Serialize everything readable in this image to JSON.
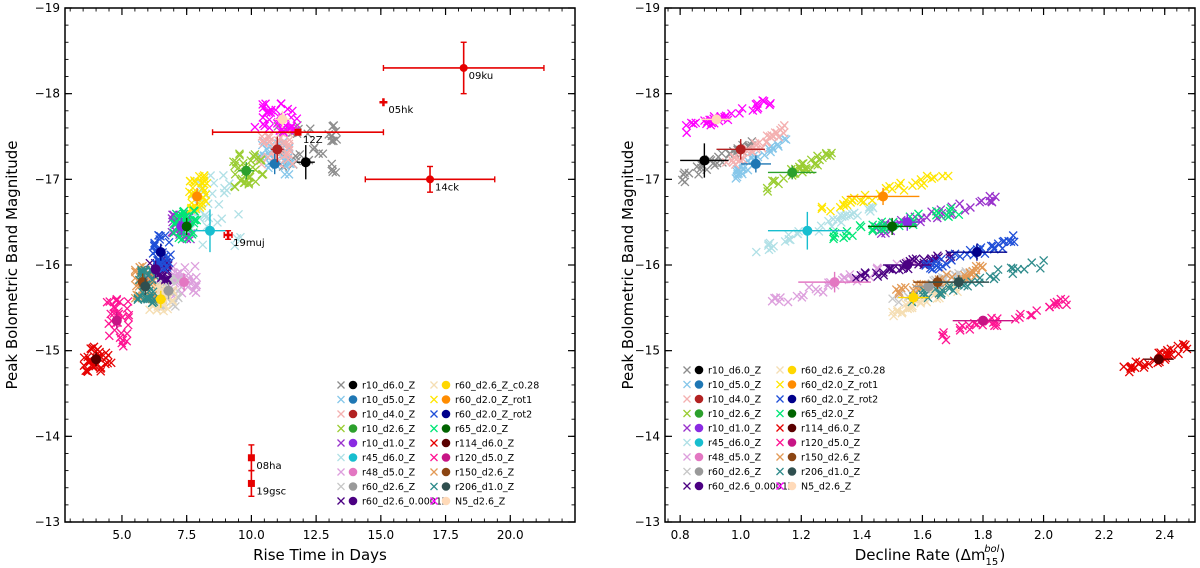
{
  "chart_data": [
    {
      "type": "scatter",
      "panel": "left",
      "xlabel": "Rise Time in Days",
      "ylabel": "Peak Bolometric Band Magnitude",
      "xlim": [
        2.8,
        22.5
      ],
      "ylim": [
        -19,
        -13
      ],
      "y_inverted": true,
      "xticks": [
        5.0,
        7.5,
        10.0,
        12.5,
        15.0,
        17.5,
        20.0
      ],
      "xtick_labels": [
        "5.0",
        "7.5",
        "10.0",
        "12.5",
        "15.0",
        "17.5",
        "20.0"
      ],
      "yticks": [
        -19,
        -18,
        -17,
        -16,
        -15,
        -14,
        -13
      ],
      "ytick_labels": [
        "−19",
        "−18",
        "−17",
        "−16",
        "−15",
        "−14",
        "−13"
      ],
      "legend_position": "bottom-right",
      "legend_columns": [
        [
          "r10_d6.0_Z",
          "r10_d5.0_Z",
          "r10_d4.0_Z",
          "r10_d2.6_Z",
          "r10_d1.0_Z",
          "r45_d6.0_Z",
          "r48_d5.0_Z",
          "r60_d2.6_Z",
          "r60_d2.6_0.0001Z"
        ],
        [
          "r60_d2.6_Z_c0.28",
          "r60_d2.0_Z_rot1",
          "r60_d2.0_Z_rot2",
          "r65_d2.0_Z",
          "r114_d6.0_Z",
          "r120_d5.0_Z",
          "r150_d2.6_Z",
          "r206_d1.0_Z",
          "N5_d2.6_Z"
        ]
      ],
      "series": [
        {
          "name": "r10_d6.0_Z",
          "color": "#000000",
          "cross_color": "#8c8c8c",
          "x": 12.1,
          "y": -17.2,
          "spread_x": [
            11.0,
            13.3
          ],
          "spread_y": [
            -17.65,
            -17.05
          ],
          "xerr": 0.35,
          "yerr": 0.2
        },
        {
          "name": "r10_d5.0_Z",
          "color": "#1f77b4",
          "cross_color": "#87c7ea",
          "x": 10.9,
          "y": -17.18,
          "spread_x": [
            10.3,
            11.6
          ],
          "spread_y": [
            -17.45,
            -17.05
          ],
          "xerr": 0.25,
          "yerr": 0.12
        },
        {
          "name": "r10_d4.0_Z",
          "color": "#b22222",
          "cross_color": "#f4b0b0",
          "x": 11.0,
          "y": -17.35,
          "spread_x": [
            10.3,
            11.6
          ],
          "spread_y": [
            -17.55,
            -17.15
          ],
          "xerr": 0.25,
          "yerr": 0.15
        },
        {
          "name": "r10_d2.6_Z",
          "color": "#2ca02c",
          "cross_color": "#9acd32",
          "x": 9.8,
          "y": -17.1,
          "spread_x": [
            9.3,
            10.5
          ],
          "spread_y": [
            -17.3,
            -16.9
          ],
          "xerr": 0.3,
          "yerr": 0.1
        },
        {
          "name": "r10_d1.0_Z",
          "color": "#8a2be2",
          "cross_color": "#9932cc",
          "x": 7.3,
          "y": -16.45,
          "spread_x": [
            6.9,
            7.7
          ],
          "spread_y": [
            -16.6,
            -16.3
          ],
          "xerr": 0.2,
          "yerr": 0.1
        },
        {
          "name": "r45_d6.0_Z",
          "color": "#17becf",
          "cross_color": "#b0e0e6",
          "x": 8.4,
          "y": -16.4,
          "spread_x": [
            7.6,
            9.6
          ],
          "spread_y": [
            -17.1,
            -16.2
          ],
          "xerr": 0.6,
          "yerr": 0.25
        },
        {
          "name": "r48_d5.0_Z",
          "color": "#e377c2",
          "cross_color": "#dda0dd",
          "x": 7.4,
          "y": -15.8,
          "spread_x": [
            6.9,
            7.9
          ],
          "spread_y": [
            -16.0,
            -15.6
          ],
          "xerr": 0.2,
          "yerr": 0.1
        },
        {
          "name": "r60_d2.6_Z",
          "color": "#999999",
          "cross_color": "#c8c8c8",
          "x": 6.8,
          "y": -15.7,
          "spread_x": [
            6.3,
            7.2
          ],
          "spread_y": [
            -15.9,
            -15.5
          ],
          "xerr": 0.2,
          "yerr": 0.1
        },
        {
          "name": "r60_d2.6_0.0001Z",
          "color": "#4b0082",
          "cross_color": "#4b0082",
          "x": 6.3,
          "y": -15.95,
          "spread_x": [
            6.0,
            6.8
          ],
          "spread_y": [
            -16.1,
            -15.8
          ],
          "xerr": 0.15,
          "yerr": 0.1
        },
        {
          "name": "r60_d2.6_Z_c0.28",
          "color": "#ffd700",
          "cross_color": "#f5deb3",
          "x": 6.5,
          "y": -15.6,
          "spread_x": [
            6.0,
            7.0
          ],
          "spread_y": [
            -15.75,
            -15.45
          ],
          "xerr": 0.2,
          "yerr": 0.1
        },
        {
          "name": "r60_d2.0_Z_rot1",
          "color": "#ff8c00",
          "cross_color": "#ffe600",
          "x": 7.9,
          "y": -16.8,
          "spread_x": [
            7.6,
            8.3
          ],
          "spread_y": [
            -17.05,
            -16.6
          ],
          "xerr": 0.15,
          "yerr": 0.1
        },
        {
          "name": "r60_d2.0_Z_rot2",
          "color": "#00008b",
          "cross_color": "#1f4fd8",
          "x": 6.5,
          "y": -16.15,
          "spread_x": [
            6.1,
            6.9
          ],
          "spread_y": [
            -16.35,
            -15.95
          ],
          "xerr": 0.15,
          "yerr": 0.1
        },
        {
          "name": "r65_d2.0_Z",
          "color": "#006400",
          "cross_color": "#00e676",
          "x": 7.5,
          "y": -16.45,
          "spread_x": [
            7.0,
            7.9
          ],
          "spread_y": [
            -16.65,
            -16.3
          ],
          "xerr": 0.15,
          "yerr": 0.1
        },
        {
          "name": "r114_d6.0_Z",
          "color": "#5a0000",
          "cross_color": "#e60000",
          "x": 4.0,
          "y": -14.9,
          "spread_x": [
            3.5,
            4.6
          ],
          "spread_y": [
            -15.05,
            -14.75
          ],
          "xerr": 0.2,
          "yerr": 0.08
        },
        {
          "name": "r120_d5.0_Z",
          "color": "#c71585",
          "cross_color": "#ff1493",
          "x": 4.8,
          "y": -15.35,
          "spread_x": [
            4.3,
            5.3
          ],
          "spread_y": [
            -15.6,
            -15.05
          ],
          "xerr": 0.15,
          "yerr": 0.1
        },
        {
          "name": "r150_d2.6_Z",
          "color": "#8b4513",
          "cross_color": "#e39a56",
          "x": 5.8,
          "y": -15.8,
          "spread_x": [
            5.5,
            6.2
          ],
          "spread_y": [
            -16.0,
            -15.6
          ],
          "xerr": 0.15,
          "yerr": 0.1
        },
        {
          "name": "r206_d1.0_Z",
          "color": "#2f4f4f",
          "cross_color": "#2e8b8b",
          "x": 5.9,
          "y": -15.75,
          "spread_x": [
            5.6,
            6.3
          ],
          "spread_y": [
            -15.95,
            -15.55
          ],
          "xerr": 0.15,
          "yerr": 0.1
        },
        {
          "name": "N5_d2.6_Z",
          "color": "#ffdab9",
          "cross_color": "#ff00ff",
          "x": 11.2,
          "y": -17.7,
          "spread_x": [
            10.0,
            11.8
          ],
          "spread_y": [
            -17.9,
            -17.55
          ],
          "xerr": 0.3,
          "yerr": 0.1
        }
      ],
      "observations": [
        {
          "name": "09ku",
          "x": 18.2,
          "y": -18.3,
          "xerr": 3.1,
          "yerr": 0.3,
          "marker": "circle"
        },
        {
          "name": "05hk",
          "x": 15.1,
          "y": -17.9,
          "xerr": 0.0,
          "yerr": 0.0,
          "marker": "plus"
        },
        {
          "name": "12Z",
          "x": 11.8,
          "y": -17.55,
          "xerr": 3.3,
          "yerr": 0.0,
          "marker": "square"
        },
        {
          "name": "14ck",
          "x": 16.9,
          "y": -17.0,
          "xerr": 2.5,
          "yerr": 0.15,
          "marker": "circle"
        },
        {
          "name": "19muj",
          "x": 9.1,
          "y": -16.35,
          "xerr": 0.15,
          "yerr": 0.05,
          "marker": "plus"
        },
        {
          "name": "08ha",
          "x": 10.0,
          "y": -13.75,
          "xerr": 0.0,
          "yerr": 0.15,
          "marker": "square"
        },
        {
          "name": "19gsc",
          "x": 10.0,
          "y": -13.45,
          "xerr": 0.0,
          "yerr": 0.15,
          "marker": "square"
        }
      ]
    },
    {
      "type": "scatter",
      "panel": "right",
      "xlabel": "Decline Rate (Δm",
      "xlabel_sub": "15",
      "xlabel_sup": "bol",
      "xlabel_end": ")",
      "ylabel": "Peak Bolometric Band Magnitude",
      "xlim": [
        0.75,
        2.5
      ],
      "ylim": [
        -19,
        -13
      ],
      "y_inverted": true,
      "xticks": [
        0.8,
        1.0,
        1.2,
        1.4,
        1.6,
        1.8,
        2.0,
        2.2,
        2.4
      ],
      "xtick_labels": [
        "0.8",
        "1.0",
        "1.2",
        "1.4",
        "1.6",
        "1.8",
        "2.0",
        "2.2",
        "2.4"
      ],
      "yticks": [
        -19,
        -18,
        -17,
        -16,
        -15,
        -14,
        -13
      ],
      "ytick_labels": [
        "−19",
        "−18",
        "−17",
        "−16",
        "−15",
        "−14",
        "−13"
      ],
      "legend_position": "bottom-left",
      "series": [
        {
          "name": "r10_d6.0_Z",
          "x": 0.88,
          "y": -17.22,
          "spread_x": [
            0.8,
            1.05
          ],
          "spread_y": [
            -17.45,
            -17.0
          ],
          "xerr": 0.08,
          "yerr": 0.2
        },
        {
          "name": "r10_d5.0_Z",
          "x": 1.05,
          "y": -17.18,
          "spread_x": [
            0.98,
            1.15
          ],
          "spread_y": [
            -17.5,
            -17.05
          ],
          "xerr": 0.05,
          "yerr": 0.1
        },
        {
          "name": "r10_d4.0_Z",
          "x": 1.0,
          "y": -17.35,
          "spread_x": [
            0.95,
            1.15
          ],
          "spread_y": [
            -17.6,
            -17.15
          ],
          "xerr": 0.08,
          "yerr": 0.12
        },
        {
          "name": "r10_d2.6_Z",
          "x": 1.17,
          "y": -17.08,
          "spread_x": [
            1.08,
            1.3
          ],
          "spread_y": [
            -17.3,
            -16.9
          ],
          "xerr": 0.08,
          "yerr": 0.08
        },
        {
          "name": "r10_d1.0_Z",
          "x": 1.55,
          "y": -16.5,
          "spread_x": [
            1.45,
            1.85
          ],
          "spread_y": [
            -16.8,
            -16.4
          ],
          "xerr": 0.05,
          "yerr": 0.1
        },
        {
          "name": "r45_d6.0_Z",
          "x": 1.22,
          "y": -16.4,
          "spread_x": [
            1.05,
            1.45
          ],
          "spread_y": [
            -16.7,
            -16.15
          ],
          "xerr": 0.13,
          "yerr": 0.22
        },
        {
          "name": "r48_d5.0_Z",
          "x": 1.31,
          "y": -15.8,
          "spread_x": [
            1.1,
            1.6
          ],
          "spread_y": [
            -16.1,
            -15.55
          ],
          "xerr": 0.12,
          "yerr": 0.12
        },
        {
          "name": "r60_d2.6_Z",
          "x": 1.62,
          "y": -15.75,
          "spread_x": [
            1.5,
            1.75
          ],
          "spread_y": [
            -15.9,
            -15.6
          ],
          "xerr": 0.05,
          "yerr": 0.08
        },
        {
          "name": "r60_d2.6_0.0001Z",
          "x": 1.55,
          "y": -16.0,
          "spread_x": [
            1.38,
            1.7
          ],
          "spread_y": [
            -16.15,
            -15.85
          ],
          "xerr": 0.08,
          "yerr": 0.08
        },
        {
          "name": "r60_d2.6_Z_c0.28",
          "x": 1.57,
          "y": -15.62,
          "spread_x": [
            1.5,
            1.72
          ],
          "spread_y": [
            -15.75,
            -15.45
          ],
          "xerr": 0.05,
          "yerr": 0.08
        },
        {
          "name": "r60_d2.0_Z_rot1",
          "x": 1.47,
          "y": -16.8,
          "spread_x": [
            1.25,
            1.7
          ],
          "spread_y": [
            -17.1,
            -16.6
          ],
          "xerr": 0.12,
          "yerr": 0.1
        },
        {
          "name": "r60_d2.0_Z_rot2",
          "x": 1.78,
          "y": -16.15,
          "spread_x": [
            1.6,
            1.95
          ],
          "spread_y": [
            -16.35,
            -15.95
          ],
          "xerr": 0.1,
          "yerr": 0.1
        },
        {
          "name": "r65_d2.0_Z",
          "x": 1.5,
          "y": -16.45,
          "spread_x": [
            1.3,
            1.75
          ],
          "spread_y": [
            -16.65,
            -16.35
          ],
          "xerr": 0.08,
          "yerr": 0.1
        },
        {
          "name": "r114_d6.0_Z",
          "x": 2.38,
          "y": -14.9,
          "spread_x": [
            2.25,
            2.48
          ],
          "spread_y": [
            -15.05,
            -14.75
          ],
          "xerr": 0.05,
          "yerr": 0.05
        },
        {
          "name": "r120_d5.0_Z",
          "x": 1.8,
          "y": -15.35,
          "spread_x": [
            1.65,
            2.1
          ],
          "spread_y": [
            -15.6,
            -15.15
          ],
          "xerr": 0.1,
          "yerr": 0.05
        },
        {
          "name": "r150_d2.6_Z",
          "x": 1.65,
          "y": -15.8,
          "spread_x": [
            1.5,
            1.8
          ],
          "spread_y": [
            -15.95,
            -15.65
          ],
          "xerr": 0.08,
          "yerr": 0.08
        },
        {
          "name": "r206_d1.0_Z",
          "x": 1.72,
          "y": -15.8,
          "spread_x": [
            1.55,
            2.02
          ],
          "spread_y": [
            -16.05,
            -15.6
          ],
          "xerr": 0.1,
          "yerr": 0.08
        },
        {
          "name": "N5_d2.6_Z",
          "x": 0.92,
          "y": -17.7,
          "spread_x": [
            0.82,
            1.1
          ],
          "spread_y": [
            -17.9,
            -17.6
          ],
          "xerr": 0.05,
          "yerr": 0.05
        }
      ]
    }
  ]
}
